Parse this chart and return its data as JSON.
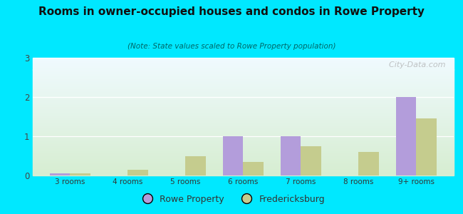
{
  "title": "Rooms in owner-occupied houses and condos in Rowe Property",
  "subtitle": "(Note: State values scaled to Rowe Property population)",
  "categories": [
    "3 rooms",
    "4 rooms",
    "5 rooms",
    "6 rooms",
    "7 rooms",
    "8 rooms",
    "9+ rooms"
  ],
  "rowe_values": [
    0.05,
    0,
    0,
    1.0,
    1.0,
    0,
    2.0
  ],
  "fred_values": [
    0.05,
    0.15,
    0.5,
    0.35,
    0.75,
    0.6,
    1.45
  ],
  "rowe_color": "#b39ddb",
  "fred_color": "#c5cc8e",
  "ylim": [
    0,
    3
  ],
  "yticks": [
    0,
    1,
    2,
    3
  ],
  "background_outer": "#00e8ff",
  "bar_width": 0.35,
  "legend_rowe": "Rowe Property",
  "legend_fred": "Fredericksburg",
  "watermark": "  City-Data.com"
}
